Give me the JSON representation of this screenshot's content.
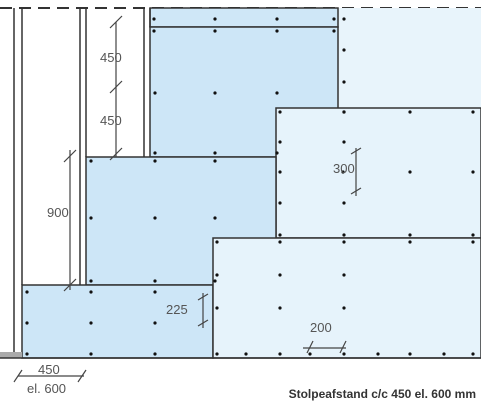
{
  "labels": {
    "dim_450_top": "450",
    "dim_450_mid": "450",
    "dim_900": "900",
    "dim_300": "300",
    "dim_225": "225",
    "dim_200": "200",
    "stud_spacing_line1": "450",
    "stud_spacing_line2": "el. 600",
    "caption": "Stolpeafstand c/c 450 el. 600 mm"
  },
  "colors": {
    "board_light": "#e6f3fb",
    "board_mid": "#d3ebf8",
    "board_dark": "#c8e4f6",
    "outline": "#333333",
    "stud": "#333333",
    "screw": "#111111",
    "dim_line": "#444444",
    "floor": "#aaaaaa"
  }
}
